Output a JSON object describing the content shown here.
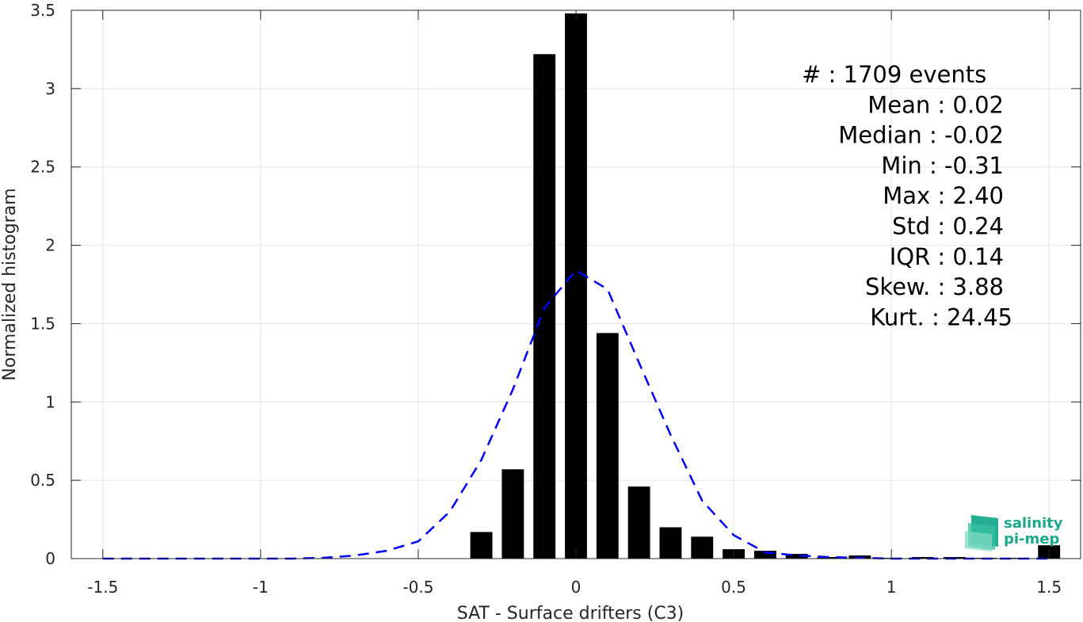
{
  "chart_data": {
    "type": "bar",
    "xlabel": "SAT - Surface drifters (C3)",
    "ylabel": "Normalized histogram",
    "xlim": [
      -1.6,
      1.6
    ],
    "ylim": [
      0,
      3.5
    ],
    "grid": true,
    "x_ticks": [
      -1.5,
      -1,
      -0.5,
      0,
      0.5,
      1,
      1.5
    ],
    "x_tick_labels": [
      "-1.5",
      "-1",
      "-0.5",
      "0",
      "0.5",
      "1",
      "1.5"
    ],
    "y_ticks": [
      0,
      0.5,
      1,
      1.5,
      2,
      2.5,
      3,
      3.5
    ],
    "y_tick_labels": [
      "0",
      "0.5",
      "1",
      "1.5",
      "2",
      "2.5",
      "3",
      "3.5"
    ],
    "bar_width": 0.07,
    "bars": {
      "x": [
        -0.3,
        -0.2,
        -0.1,
        0.0,
        0.1,
        0.2,
        0.3,
        0.4,
        0.5,
        0.6,
        0.7,
        0.8,
        0.9,
        1.0,
        1.1,
        1.2,
        1.3,
        1.4,
        1.5
      ],
      "values": [
        0.17,
        0.57,
        3.22,
        3.48,
        1.44,
        0.46,
        0.2,
        0.14,
        0.06,
        0.05,
        0.03,
        0.01,
        0.02,
        0.005,
        0.01,
        0.01,
        0.005,
        0.005,
        0.085
      ],
      "color": "#000000"
    },
    "fit_curve": {
      "style": "dashed",
      "color": "#0000ff",
      "x": [
        -1.5,
        -1.4,
        -1.3,
        -1.2,
        -1.1,
        -1.0,
        -0.9,
        -0.8,
        -0.7,
        -0.6,
        -0.5,
        -0.4,
        -0.3,
        -0.2,
        -0.1,
        0.0,
        0.1,
        0.2,
        0.3,
        0.4,
        0.5,
        0.6,
        0.7,
        0.8,
        0.9,
        1.0,
        1.1,
        1.2,
        1.3,
        1.4,
        1.5
      ],
      "y": [
        0,
        0,
        0,
        0,
        0,
        0,
        0,
        0.005,
        0.02,
        0.05,
        0.11,
        0.3,
        0.63,
        1.08,
        1.6,
        1.84,
        1.72,
        1.25,
        0.79,
        0.37,
        0.15,
        0.04,
        0.02,
        0.01,
        0.005,
        0,
        0,
        0,
        0,
        0,
        0
      ]
    },
    "annotations": [
      "#  : 1709 events",
      "Mean : 0.02",
      "Median : -0.02",
      "Min : -0.31",
      "Max : 2.40",
      "Std : 0.24",
      "IQR : 0.14",
      "Skew. : 3.88",
      "Kurt. : 24.45"
    ]
  },
  "logo": {
    "line1": "salinity",
    "line2": "pi-mep",
    "color": "#1aa88a"
  }
}
